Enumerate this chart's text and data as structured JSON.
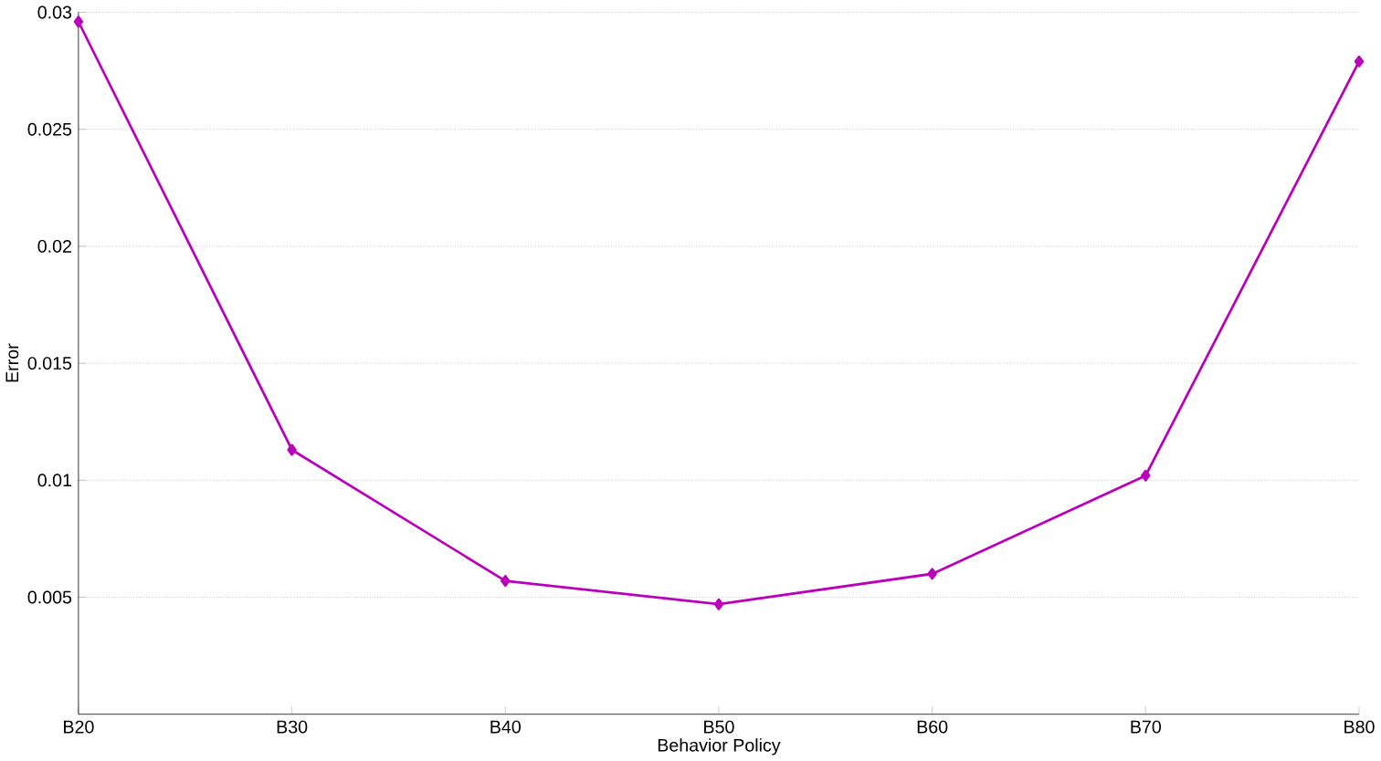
{
  "chart_data": {
    "type": "line",
    "xlabel": "Behavior Policy",
    "ylabel": "Error",
    "categories": [
      "B20",
      "B30",
      "B40",
      "B50",
      "B60",
      "B70",
      "B80"
    ],
    "series": [
      {
        "color": "#bb00bb",
        "values": [
          0.0296,
          0.0113,
          0.0057,
          0.0047,
          0.006,
          0.0102,
          0.0279
        ]
      }
    ],
    "ylim": [
      0,
      0.03
    ],
    "yticks": [
      0.005,
      0.01,
      0.015,
      0.02,
      0.025,
      0.03
    ],
    "grid": "y",
    "marker": "diamond",
    "line_style": "solid"
  }
}
